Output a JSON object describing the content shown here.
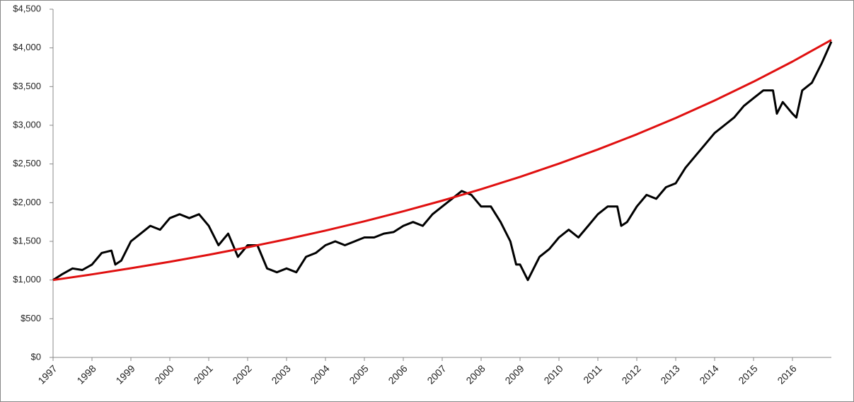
{
  "chart_data": {
    "type": "line",
    "xlim": [
      1997,
      2017
    ],
    "xticks": [
      1997,
      1998,
      1999,
      2000,
      2001,
      2002,
      2003,
      2004,
      2005,
      2006,
      2007,
      2008,
      2009,
      2010,
      2011,
      2012,
      2013,
      2014,
      2015,
      2016
    ],
    "ylim": [
      0,
      4500
    ],
    "yticks": [
      {
        "value": 0,
        "label": "$0"
      },
      {
        "value": 500,
        "label": "$500"
      },
      {
        "value": 1000,
        "label": "$1,000"
      },
      {
        "value": 1500,
        "label": "$1,500"
      },
      {
        "value": 2000,
        "label": "$2,000"
      },
      {
        "value": 2500,
        "label": "$2,500"
      },
      {
        "value": 3000,
        "label": "$3,000"
      },
      {
        "value": 3500,
        "label": "$3,500"
      },
      {
        "value": 4000,
        "label": "$4,000"
      },
      {
        "value": 4500,
        "label": "$4,500"
      }
    ],
    "grid": false,
    "series": [
      {
        "color": "#000000",
        "x": [
          1997.0,
          1997.25,
          1997.5,
          1997.75,
          1998.0,
          1998.25,
          1998.5,
          1998.6,
          1998.75,
          1999.0,
          1999.25,
          1999.5,
          1999.75,
          2000.0,
          2000.25,
          2000.5,
          2000.75,
          2001.0,
          2001.25,
          2001.5,
          2001.75,
          2002.0,
          2002.25,
          2002.5,
          2002.75,
          2003.0,
          2003.25,
          2003.5,
          2003.75,
          2004.0,
          2004.25,
          2004.5,
          2004.75,
          2005.0,
          2005.25,
          2005.5,
          2005.75,
          2006.0,
          2006.25,
          2006.5,
          2006.75,
          2007.0,
          2007.25,
          2007.5,
          2007.75,
          2008.0,
          2008.25,
          2008.5,
          2008.75,
          2008.9,
          2009.0,
          2009.2,
          2009.5,
          2009.75,
          2010.0,
          2010.25,
          2010.5,
          2010.75,
          2011.0,
          2011.25,
          2011.5,
          2011.6,
          2011.75,
          2012.0,
          2012.25,
          2012.5,
          2012.75,
          2013.0,
          2013.25,
          2013.5,
          2013.75,
          2014.0,
          2014.25,
          2014.5,
          2014.75,
          2015.0,
          2015.25,
          2015.5,
          2015.6,
          2015.75,
          2016.0,
          2016.1,
          2016.25,
          2016.5,
          2016.75,
          2017.0
        ],
        "values": [
          1000,
          1080,
          1150,
          1130,
          1200,
          1350,
          1380,
          1200,
          1250,
          1500,
          1600,
          1700,
          1650,
          1800,
          1850,
          1800,
          1850,
          1700,
          1450,
          1600,
          1300,
          1450,
          1450,
          1150,
          1100,
          1150,
          1100,
          1300,
          1350,
          1450,
          1500,
          1450,
          1500,
          1550,
          1550,
          1600,
          1620,
          1700,
          1750,
          1700,
          1850,
          1950,
          2050,
          2150,
          2100,
          1950,
          1950,
          1750,
          1500,
          1200,
          1200,
          1000,
          1300,
          1400,
          1550,
          1650,
          1550,
          1700,
          1850,
          1950,
          1950,
          1700,
          1750,
          1950,
          2100,
          2050,
          2200,
          2250,
          2450,
          2600,
          2750,
          2900,
          3000,
          3100,
          3250,
          3350,
          3450,
          3450,
          3150,
          3300,
          3150,
          3100,
          3450,
          3550,
          3800,
          4080
        ]
      },
      {
        "color": "#e01010",
        "x": [
          1997,
          1998,
          1999,
          2000,
          2001,
          2002,
          2003,
          2004,
          2005,
          2006,
          2007,
          2008,
          2009,
          2010,
          2011,
          2012,
          2013,
          2014,
          2015,
          2016,
          2017
        ],
        "values": [
          1000,
          1073,
          1152,
          1236,
          1326,
          1423,
          1527,
          1639,
          1759,
          1888,
          2026,
          2174,
          2333,
          2504,
          2687,
          2883,
          3094,
          3320,
          3563,
          3823,
          4103
        ]
      }
    ]
  }
}
